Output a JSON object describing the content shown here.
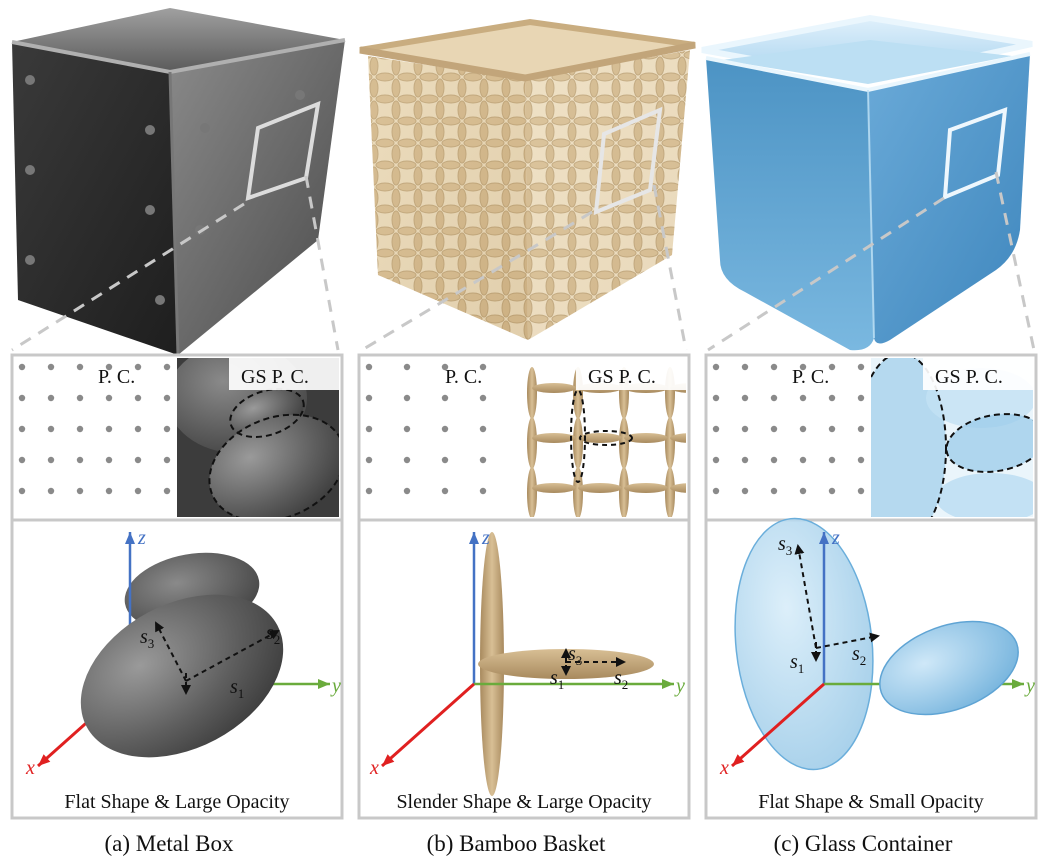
{
  "panels": [
    {
      "id": "metal",
      "caption": "(a) Metal Box",
      "point_cloud_label": "P. C.",
      "gs_label": "GS P. C.",
      "description": "Flat Shape & Large Opacity",
      "axes": {
        "x": "x",
        "y": "y",
        "z": "z"
      },
      "scales": [
        "s",
        "s",
        "s"
      ],
      "scale_subs": [
        "1",
        "2",
        "3"
      ],
      "material_color": "#5a5a5a"
    },
    {
      "id": "bamboo",
      "caption": "(b) Bamboo Basket",
      "point_cloud_label": "P. C.",
      "gs_label": "GS P. C.",
      "description": "Slender Shape & Large Opacity",
      "axes": {
        "x": "x",
        "y": "y",
        "z": "z"
      },
      "scales": [
        "s",
        "s",
        "s"
      ],
      "scale_subs": [
        "1",
        "2",
        "3"
      ],
      "material_color": "#c9ae84"
    },
    {
      "id": "glass",
      "caption": "(c) Glass Container",
      "point_cloud_label": "P. C.",
      "gs_label": "GS P. C.",
      "description": "Flat Shape & Small Opacity",
      "axes": {
        "x": "x",
        "y": "y",
        "z": "z"
      },
      "scales": [
        "s",
        "s",
        "s"
      ],
      "scale_subs": [
        "1",
        "2",
        "3"
      ],
      "material_color": "#8fc3e4"
    }
  ],
  "colors": {
    "x_axis": "#e02020",
    "y_axis": "#6aab3c",
    "z_axis": "#4472c4",
    "frame": "#c8c8c8",
    "points": "#8a8a8a"
  }
}
